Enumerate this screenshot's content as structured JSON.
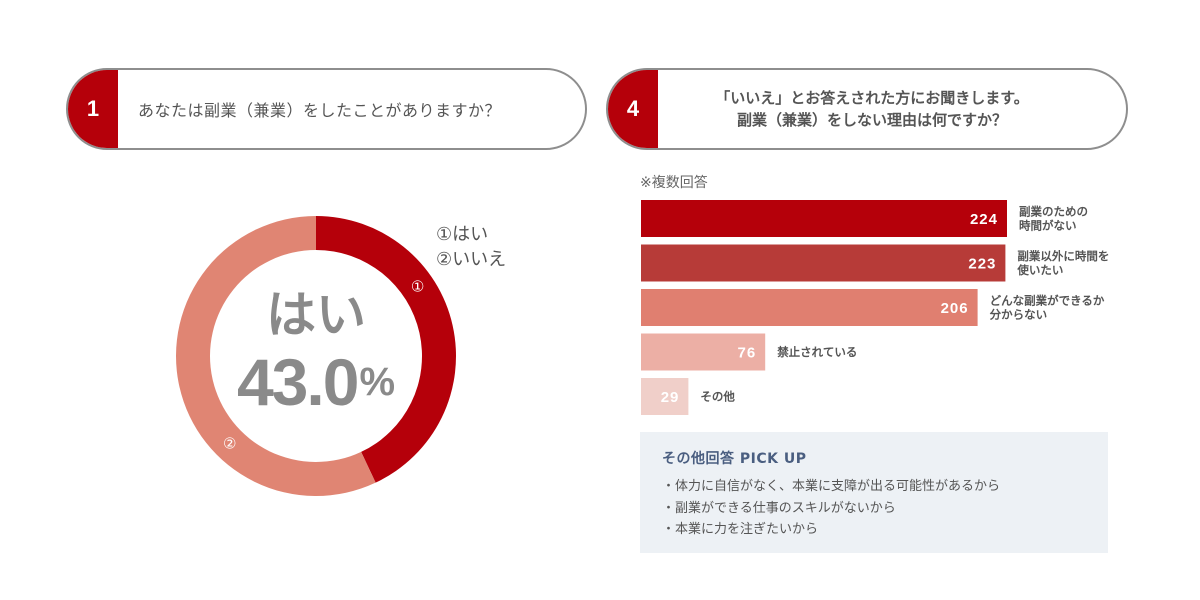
{
  "q1": {
    "number": "1",
    "text": "あなたは副業（兼業）をしたことがありますか？"
  },
  "q4": {
    "number": "4",
    "line1": "「いいえ」とお答えされた方にお聞きします。",
    "line2": "副業（兼業）をしない理由は何ですか？"
  },
  "colors": {
    "accent": "#b5000a",
    "bar_colors": [
      "#b5000a",
      "#b73b38",
      "#e07f70",
      "#ecafa5",
      "#f0cfc9"
    ],
    "donut_yes": "#b5000a",
    "donut_no": "#e08573"
  },
  "chart_data": [
    {
      "type": "pie",
      "title": "",
      "categories": [
        "①はい",
        "②いいえ"
      ],
      "values": [
        43.0,
        57.0
      ],
      "slice_markers": [
        "①",
        "②"
      ],
      "center_label": "はい",
      "center_value": "43.0",
      "center_unit": "%",
      "legend_position": "top-right"
    },
    {
      "type": "bar",
      "orientation": "horizontal",
      "note": "※複数回答",
      "categories": [
        [
          "副業のための",
          "時間がない"
        ],
        [
          "副業以外に時間を",
          "使いたい"
        ],
        [
          "どんな副業ができるか",
          "分からない"
        ],
        [
          "禁止されている"
        ],
        [
          "その他"
        ]
      ],
      "values": [
        224,
        223,
        206,
        76,
        29
      ],
      "value_labels": [
        "224",
        "223",
        "206",
        "76",
        "29"
      ],
      "xlim": [
        0,
        224
      ],
      "grid": false,
      "legend": "none"
    }
  ],
  "pickup": {
    "title": "その他回答 PICK UP",
    "items": [
      "・体力に自信がなく、本業に支障が出る可能性があるから",
      "・副業ができる仕事のスキルがないから",
      "・本業に力を注ぎたいから"
    ]
  }
}
